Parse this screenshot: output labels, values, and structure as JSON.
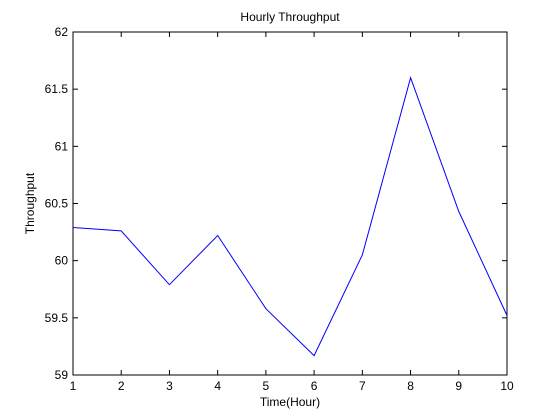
{
  "chart_data": {
    "type": "line",
    "title": "Hourly Throughput",
    "xlabel": "Time(Hour)",
    "ylabel": "Throughput",
    "xlim": [
      1,
      10
    ],
    "ylim": [
      59,
      62
    ],
    "xticks": [
      1,
      2,
      3,
      4,
      5,
      6,
      7,
      8,
      9,
      10
    ],
    "yticks": [
      59,
      59.5,
      60,
      60.5,
      61,
      61.5,
      62
    ],
    "grid": false,
    "series": [
      {
        "color": "#0000ff",
        "x": [
          1,
          2,
          3,
          4,
          5,
          6,
          7,
          8,
          9,
          10
        ],
        "y": [
          60.29,
          60.26,
          59.79,
          60.22,
          59.58,
          59.17,
          60.05,
          61.6,
          60.43,
          59.52
        ]
      }
    ]
  }
}
